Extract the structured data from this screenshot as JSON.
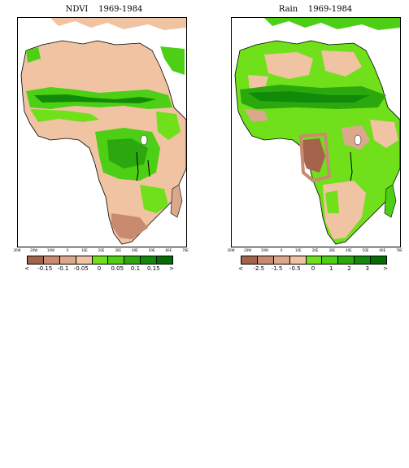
{
  "maps": [
    {
      "title": "NDVI    1969-1984",
      "x_ticks": [
        "30W",
        "20W",
        "10W",
        "0",
        "10E",
        "20E",
        "30E",
        "40E",
        "50E",
        "60E",
        "70E"
      ],
      "legend_labels": [
        "<",
        "-0.15",
        "-0.1",
        "-0.05",
        "0",
        "0.05",
        "0.1",
        "0.15",
        ">"
      ],
      "legend_colors": [
        "#a4634a",
        "#c98b70",
        "#dba88c",
        "#f0c3a2",
        "#6fe01a",
        "#4ccf14",
        "#2aa80e",
        "#118a0a",
        "#046e04"
      ],
      "land_base_color": "#f0c3a2",
      "green_regions": [
        "sahel-belt",
        "guinea-coast",
        "congo-basin",
        "east-africa",
        "southeast-africa",
        "madagascar",
        "mediterranean-coast"
      ],
      "brown_regions": [
        "sahara",
        "kalahari-south"
      ]
    },
    {
      "title": "Rain    1969-1984",
      "x_ticks": [
        "30W",
        "20W",
        "10W",
        "0",
        "10E",
        "20E",
        "30E",
        "40E",
        "50E",
        "60E",
        "70E"
      ],
      "legend_labels": [
        "<",
        "-2.5",
        "-1.5",
        "-0.5",
        "0",
        "1",
        "2",
        "3",
        ">"
      ],
      "legend_colors": [
        "#a4634a",
        "#c98b70",
        "#dba88c",
        "#f0c3a2",
        "#6fe01a",
        "#4ccf14",
        "#2aa80e",
        "#118a0a",
        "#046e04"
      ],
      "land_base_color": "#6fe01a",
      "green_regions": [
        "north-africa",
        "sahel",
        "central-africa",
        "east-africa",
        "madagascar"
      ],
      "brown_regions": [
        "sahara-patches",
        "angola-namibia",
        "east-africa-dry",
        "south-africa"
      ]
    }
  ]
}
